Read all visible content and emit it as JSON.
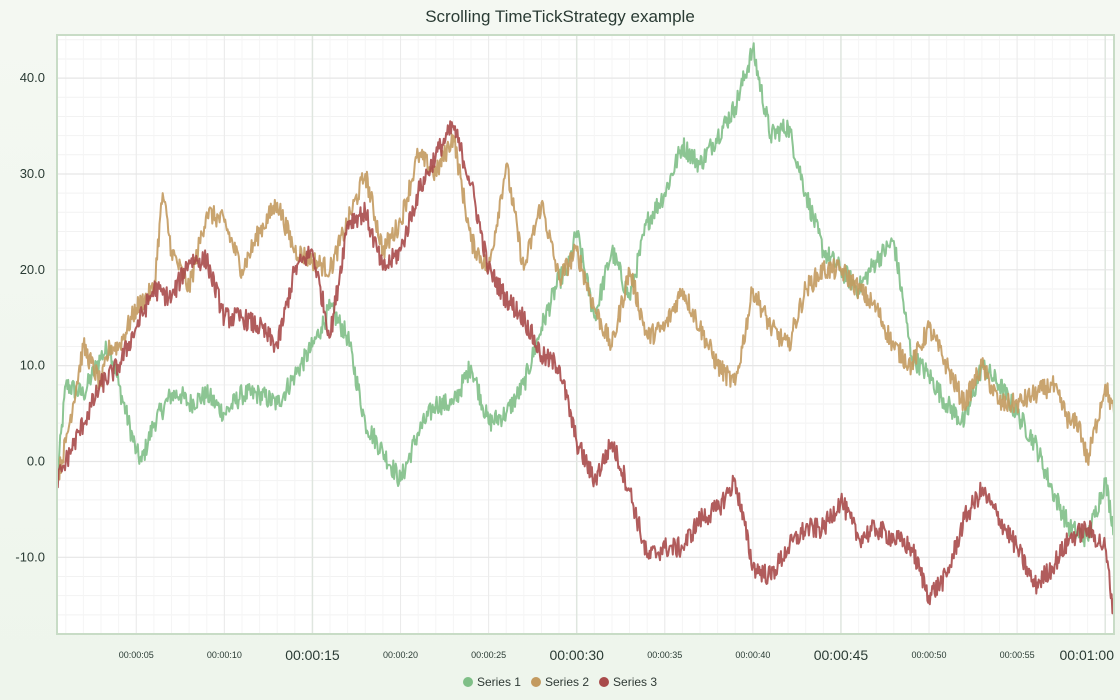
{
  "title": "Scrolling TimeTickStrategy example",
  "chart_data": {
    "type": "line",
    "title": "Scrolling TimeTickStrategy example",
    "xlabel": "",
    "ylabel": "",
    "x_unit": "seconds",
    "xlim": [
      0.5,
      60.5
    ],
    "ylim": [
      -18,
      44.5
    ],
    "y_ticks": [
      -10.0,
      0.0,
      10.0,
      20.0,
      30.0,
      40.0
    ],
    "y_tick_labels": [
      "-10.0",
      "0.0",
      "10.0",
      "20.0",
      "30.0",
      "40.0"
    ],
    "x_ticks_minor": [
      5,
      10,
      20,
      25,
      35,
      40,
      50,
      55
    ],
    "x_tick_labels_minor": [
      "00:00:05",
      "00:00:10",
      "00:00:20",
      "00:00:25",
      "00:00:35",
      "00:00:40",
      "00:00:50",
      "00:00:55"
    ],
    "x_ticks_major": [
      15,
      30,
      45,
      60
    ],
    "x_tick_labels_major": [
      "00:00:15",
      "00:00:30",
      "00:00:45",
      "00:01:00"
    ],
    "grid": true,
    "legend_placement": "bottom-center",
    "series": [
      {
        "name": "Series 1",
        "color": "#7fbf87",
        "x": [
          0.5,
          1,
          2,
          3,
          3.5,
          4,
          5,
          5.3,
          6,
          7,
          7.5,
          8,
          9,
          10,
          11,
          12,
          13,
          14,
          15,
          15.5,
          16,
          17,
          18,
          19,
          20,
          21,
          22,
          23,
          24,
          25,
          26,
          27,
          28,
          29,
          29.5,
          30,
          31,
          32,
          33,
          34,
          35,
          36,
          37,
          38,
          39,
          40,
          41,
          42,
          43,
          44,
          45,
          46,
          47,
          48,
          49,
          50,
          51,
          52,
          53,
          54,
          55,
          56,
          57,
          58,
          59,
          60,
          60.5
        ],
        "y": [
          -2,
          8,
          7,
          11,
          12,
          8,
          1,
          0,
          4,
          7,
          7,
          6,
          7,
          5,
          7,
          7,
          6,
          9,
          12,
          14,
          16,
          13,
          4,
          1,
          -2,
          3,
          6,
          6,
          10,
          4,
          5,
          8,
          14,
          19,
          20,
          24,
          15,
          22,
          17,
          25,
          28,
          33,
          31,
          34,
          37,
          43,
          34,
          35,
          28,
          22,
          20,
          18,
          21,
          23,
          11,
          9,
          6,
          4,
          10,
          8,
          5,
          2,
          -3,
          -7,
          -8,
          -2,
          -7
        ]
      },
      {
        "name": "Series 2",
        "color": "#c39a5f",
        "x": [
          0.5,
          1,
          2,
          3,
          3.5,
          4,
          5,
          6,
          6.5,
          7,
          8,
          9,
          10,
          11,
          12,
          13,
          14,
          15,
          16,
          17,
          18,
          19,
          20,
          21,
          22,
          23,
          24,
          25,
          26,
          27,
          28,
          29,
          30,
          31,
          32,
          33,
          34,
          35,
          36,
          37,
          38,
          39,
          40,
          41,
          42,
          43,
          44,
          45,
          46,
          47,
          48,
          49,
          50,
          51,
          52,
          53,
          54,
          55,
          56,
          57,
          58,
          58.5,
          59,
          60,
          60.5
        ],
        "y": [
          -2,
          2,
          12,
          8,
          12,
          12,
          16,
          18,
          28,
          22,
          18,
          26,
          25,
          20,
          24,
          27,
          22,
          21,
          20,
          25,
          30,
          22,
          25,
          32,
          30,
          34,
          23,
          20,
          31,
          20,
          27,
          19,
          22,
          16,
          12,
          20,
          13,
          14,
          18,
          14,
          10,
          8,
          18,
          14,
          12,
          18,
          20,
          20,
          18,
          16,
          12,
          10,
          14,
          10,
          6,
          10,
          6,
          6,
          7,
          8,
          4,
          4,
          0,
          8,
          5
        ]
      },
      {
        "name": "Series 3",
        "color": "#a84a4a",
        "x": [
          0.5,
          1,
          2,
          3,
          4,
          5,
          6,
          7,
          8,
          9,
          10,
          11,
          12,
          13,
          14,
          15,
          16,
          17,
          18,
          19,
          20,
          21,
          22,
          23,
          24,
          25,
          26,
          27,
          28,
          29,
          30,
          31,
          32,
          33,
          34,
          35,
          36,
          37,
          38,
          39,
          40,
          41,
          42,
          43,
          44,
          45,
          46,
          47,
          48,
          49,
          50,
          51,
          52,
          53,
          54,
          55,
          56,
          57,
          58,
          59,
          60,
          60.5
        ],
        "y": [
          -2,
          0,
          4,
          8,
          10,
          14,
          18,
          17,
          21,
          21,
          15,
          15,
          14,
          12,
          20,
          22,
          13,
          25,
          26,
          20,
          22,
          28,
          32,
          35,
          29,
          20,
          17,
          15,
          11,
          10,
          2,
          -2,
          2,
          -3,
          -10,
          -9,
          -9,
          -6,
          -5,
          -2,
          -11,
          -12,
          -9,
          -7,
          -7,
          -4,
          -8,
          -7,
          -8,
          -9,
          -14,
          -12,
          -6,
          -3,
          -6,
          -9,
          -13,
          -11,
          -8,
          -7,
          -9,
          -16
        ]
      }
    ]
  },
  "legend": {
    "items": [
      {
        "label": "Series 1",
        "color": "#7fbf87"
      },
      {
        "label": "Series 2",
        "color": "#c39a5f"
      },
      {
        "label": "Series 3",
        "color": "#a84a4a"
      }
    ]
  }
}
